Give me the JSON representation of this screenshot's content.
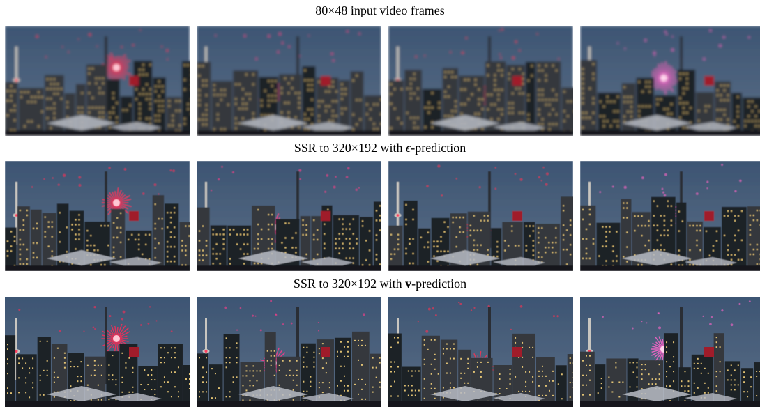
{
  "rows": [
    {
      "caption_parts": {
        "pre": "80×48 input video frames",
        "sym": "",
        "post": ""
      },
      "blur": 1.8,
      "mosaic": 7,
      "frames": [
        {
          "firework_color": "#ff2a55",
          "burst": "left-high"
        },
        {
          "firework_color": "#ff3a8a",
          "burst": "mid"
        },
        {
          "firework_color": "#ff3050",
          "burst": "center"
        },
        {
          "firework_color": "#ff66cc",
          "burst": "right"
        }
      ]
    },
    {
      "caption_parts": {
        "pre": "SSR to 320×192 with ",
        "sym": "ϵ",
        "post": "-prediction",
        "sym_style": "ital"
      },
      "blur": 0.4,
      "mosaic": 0,
      "frames": [
        {
          "firework_color": "#ff2a55",
          "burst": "left-high"
        },
        {
          "firework_color": "#ff3a8a",
          "burst": "mid"
        },
        {
          "firework_color": "#ff3050",
          "burst": "center"
        },
        {
          "firework_color": "#ff66cc",
          "burst": "right"
        }
      ]
    },
    {
      "caption_parts": {
        "pre": "SSR to 320×192 with ",
        "sym": "v",
        "post": "-prediction",
        "sym_style": "bold"
      },
      "blur": 0.2,
      "mosaic": 0,
      "frames": [
        {
          "firework_color": "#ff2a55",
          "burst": "left-high"
        },
        {
          "firework_color": "#ff3a8a",
          "burst": "mid"
        },
        {
          "firework_color": "#ff3050",
          "burst": "center"
        },
        {
          "firework_color": "#ff66cc",
          "burst": "right"
        }
      ]
    }
  ],
  "colors": {
    "sky_top": "#3d5573",
    "sky_bottom": "#5b6e86",
    "building_dark": "#1e2228",
    "building_mid": "#34383e",
    "window_light": "#f4d27a",
    "tower": "#c9c6c0",
    "roof": "#b8bcc4"
  }
}
